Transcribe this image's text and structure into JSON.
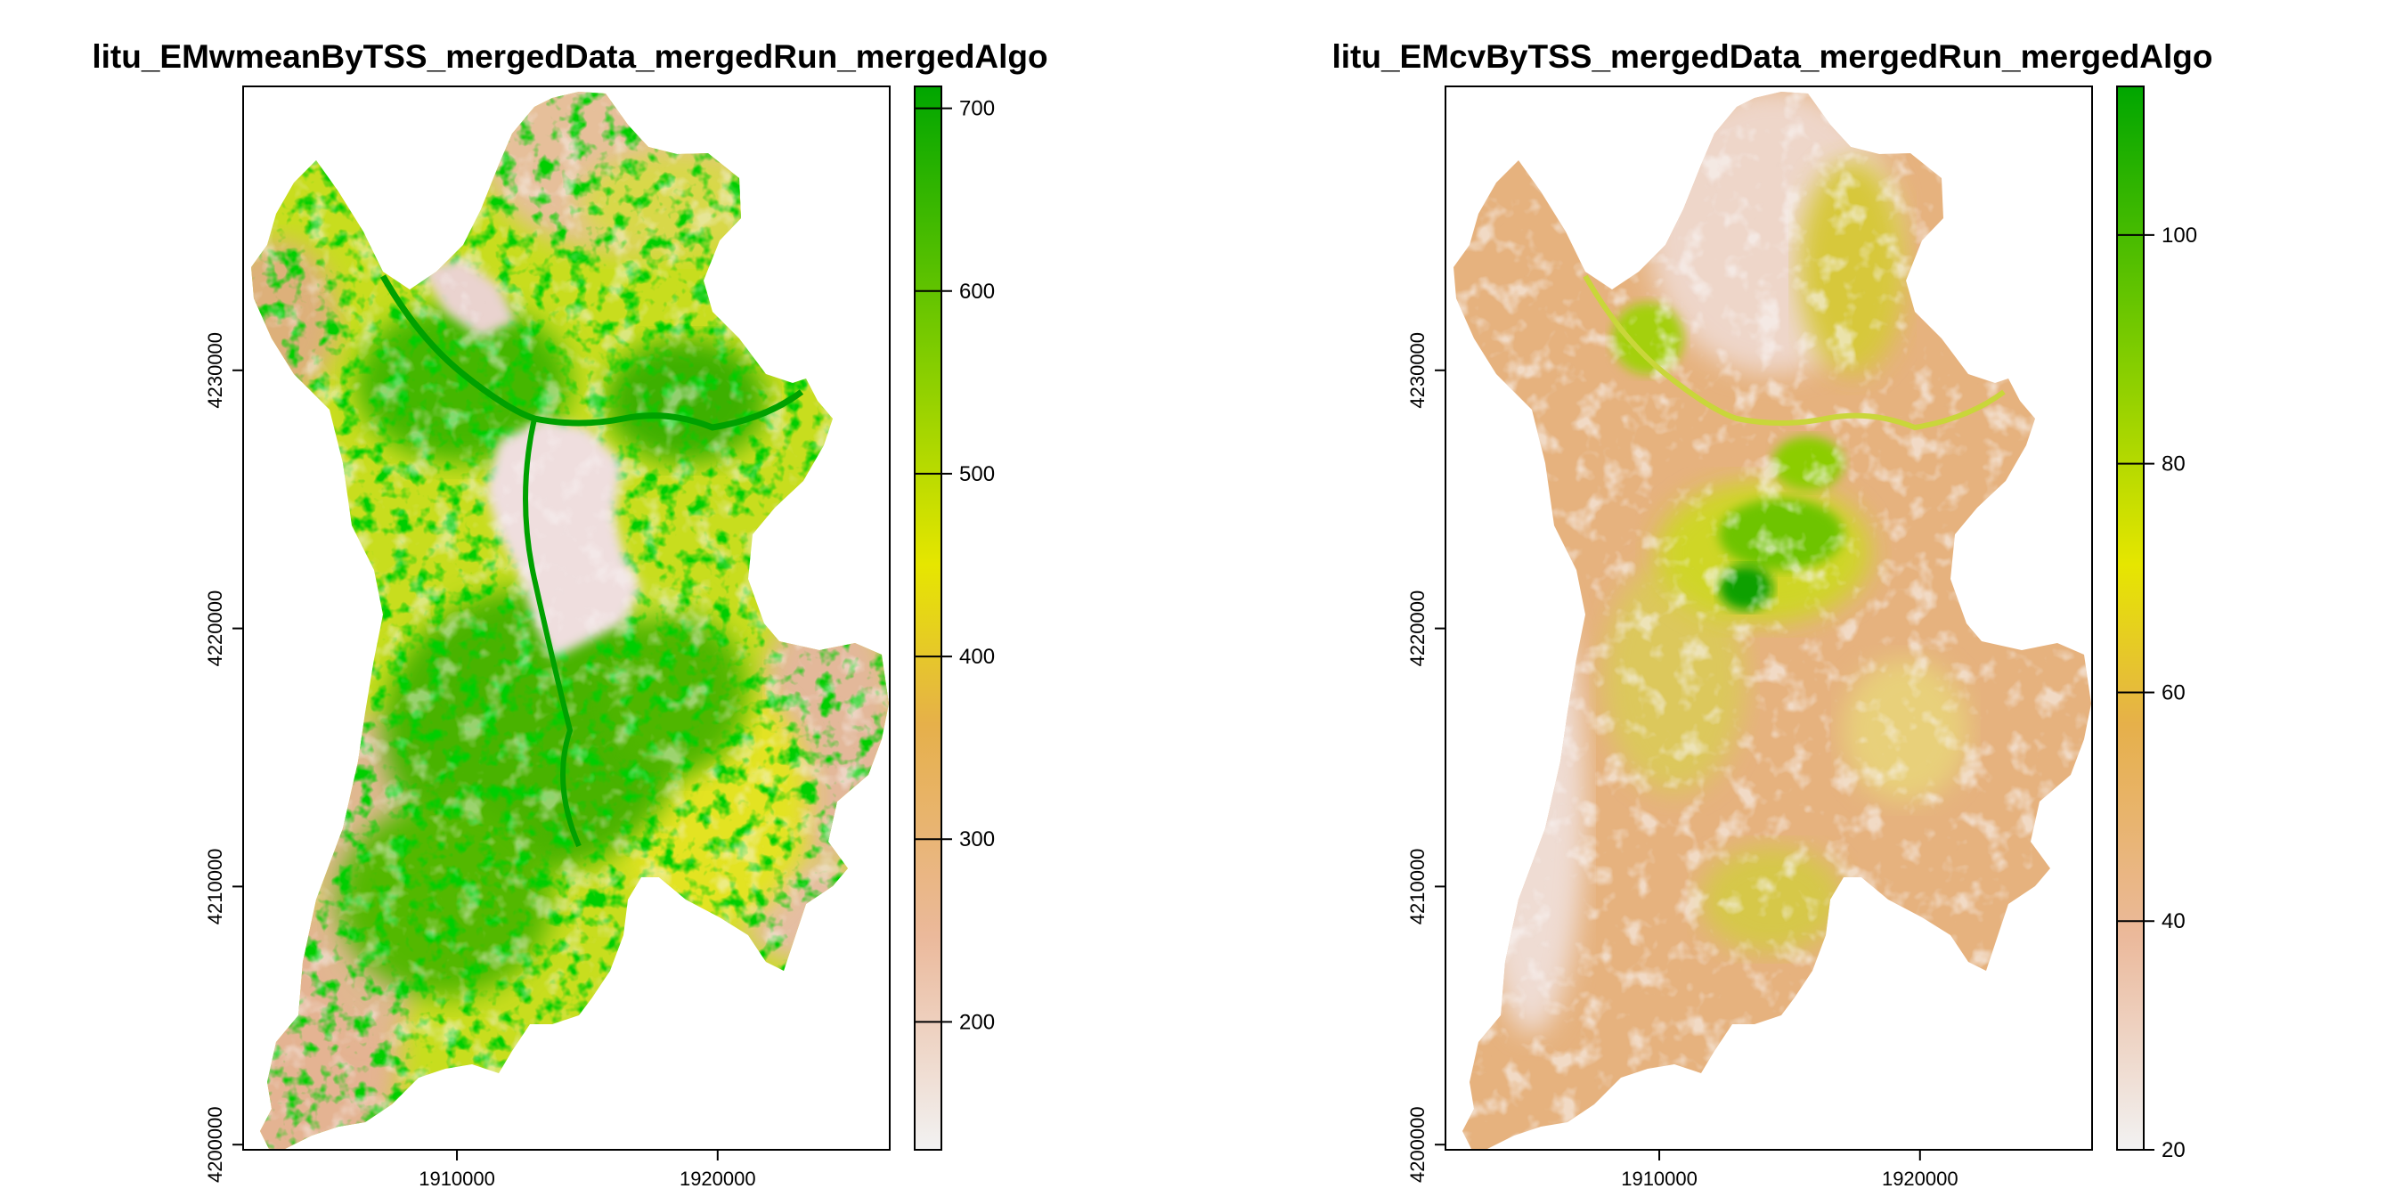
{
  "chart_data": [
    {
      "type": "heatmap",
      "title": "litu_EMwmeanByTSS_mergedData_mergedRun_mergedAlgo",
      "xlabel": "",
      "ylabel": "",
      "xlim": [
        1901800,
        1926600
      ],
      "ylim": [
        4199800,
        4241000
      ],
      "x_ticks": [
        1910000,
        1920000
      ],
      "x_tick_labels": [
        "1910000",
        "1920000"
      ],
      "y_ticks": [
        4200000,
        4210000,
        4220000,
        4230000
      ],
      "y_tick_labels": [
        "4200000",
        "4210000",
        "4220000",
        "4230000"
      ],
      "colorbar": {
        "range": [
          130,
          712
        ],
        "ticks": [
          200,
          300,
          400,
          500,
          600,
          700
        ],
        "tick_labels": [
          "200",
          "300",
          "400",
          "500",
          "600",
          "700"
        ],
        "colors": [
          "#f2f2f2",
          "#ebb99b",
          "#e6b04a",
          "#e6e600",
          "#7fcc00",
          "#00a600"
        ]
      },
      "grid": false,
      "legend": "colorbar right"
    },
    {
      "type": "heatmap",
      "title": "litu_EMcvByTSS_mergedData_mergedRun_mergedAlgo",
      "xlabel": "",
      "ylabel": "",
      "xlim": [
        1901800,
        1926600
      ],
      "ylim": [
        4199800,
        4241000
      ],
      "x_ticks": [
        1910000,
        1920000
      ],
      "x_tick_labels": [
        "1910000",
        "1920000"
      ],
      "y_ticks": [
        4200000,
        4210000,
        4220000,
        4230000
      ],
      "y_tick_labels": [
        "4200000",
        "4210000",
        "4220000",
        "4230000"
      ],
      "colorbar": {
        "range": [
          20,
          113
        ],
        "ticks": [
          20,
          40,
          60,
          80,
          100
        ],
        "tick_labels": [
          "20",
          "40",
          "60",
          "80",
          "100"
        ],
        "colors": [
          "#f2f2f2",
          "#ebb99b",
          "#e6b04a",
          "#e6e600",
          "#7fcc00",
          "#00a600"
        ]
      },
      "grid": false,
      "legend": "colorbar right"
    }
  ]
}
